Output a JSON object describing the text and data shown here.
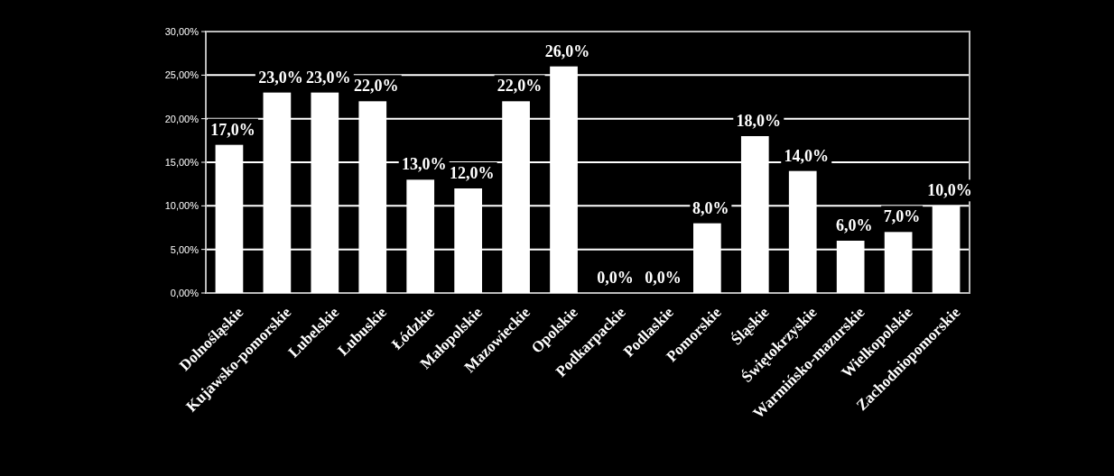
{
  "chart_data": {
    "type": "bar",
    "categories": [
      "Dolnośląskie",
      "Kujawsko-pomorskie",
      "Lubelskie",
      "Lubuskie",
      "Łódzkie",
      "Małopolskie",
      "Mazowieckie",
      "Opolskie",
      "Podkarpackie",
      "Podlaskie",
      "Pomorskie",
      "Śląskie",
      "Świętokrzyskie",
      "Warmińsko-mazurskie",
      "Wielkopolskie",
      "Zachodniopomorskie"
    ],
    "values": [
      17,
      23,
      23,
      22,
      13,
      12,
      22,
      26,
      0,
      0,
      8,
      18,
      14,
      6,
      7,
      10
    ],
    "value_labels": [
      "17,0%",
      "23,0%",
      "23,0%",
      "22,0%",
      "13,0%",
      "12,0%",
      "22,0%",
      "26,0%",
      "0,0%",
      "0,0%",
      "8,0%",
      "18,0%",
      "14,0%",
      "6,0%",
      "7,0%",
      "10,0%"
    ],
    "color": "#ffffff",
    "ylim": [
      0,
      30
    ],
    "yticks": [
      {
        "value": 0,
        "label": "0,00%"
      },
      {
        "value": 5,
        "label": "5,00%"
      },
      {
        "value": 10,
        "label": "10,00%"
      },
      {
        "value": 15,
        "label": "15,00%"
      },
      {
        "value": 20,
        "label": "20,00%"
      },
      {
        "value": 25,
        "label": "25,00%"
      },
      {
        "value": 30,
        "label": "30,00%"
      }
    ],
    "grid": "y"
  }
}
